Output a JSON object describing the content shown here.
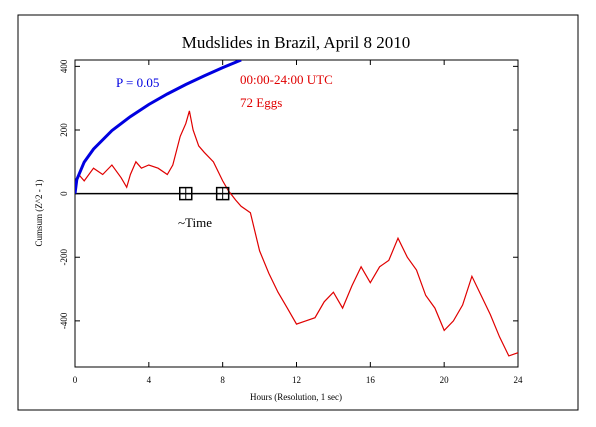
{
  "chart_data": {
    "type": "line",
    "title": "Mudslides in Brazil, April 8 2010",
    "x_label": "Hours (Resolution, 1 sec)",
    "y_label": "Cumsum (Z^2 - 1)",
    "annotations": {
      "p_label": "P = 0.05",
      "time_range": "00:00-24:00 UTC",
      "eggs": "72 Eggs",
      "time_marker": "~Time"
    },
    "event_x": [
      6,
      8
    ],
    "xlim": [
      0,
      24
    ],
    "xticks": [
      0,
      4,
      8,
      12,
      16,
      20,
      24
    ],
    "ylim": [
      -545,
      420
    ],
    "yticks": [
      -400,
      -200,
      0,
      200,
      400
    ],
    "series": [
      {
        "color": "#e00000",
        "x": [
          0,
          0.2,
          0.5,
          1,
          1.5,
          2,
          2.5,
          2.8,
          3,
          3.3,
          3.6,
          4,
          4.5,
          5,
          5.3,
          5.7,
          6,
          6.2,
          6.4,
          6.7,
          7,
          7.5,
          8,
          8.3,
          8.7,
          9,
          9.5,
          10,
          10.5,
          11,
          11.5,
          12,
          12.5,
          13,
          13.5,
          14,
          14.5,
          15,
          15.5,
          16,
          16.5,
          17,
          17.5,
          18,
          18.5,
          19,
          19.5,
          20,
          20.5,
          21,
          21.5,
          22,
          22.5,
          23,
          23.5,
          24
        ],
        "values": [
          30,
          60,
          40,
          80,
          60,
          90,
          50,
          20,
          60,
          100,
          80,
          90,
          80,
          60,
          90,
          180,
          220,
          260,
          200,
          150,
          130,
          100,
          40,
          10,
          -20,
          -40,
          -60,
          -180,
          -250,
          -310,
          -360,
          -410,
          -400,
          -390,
          -340,
          -310,
          -360,
          -290,
          -230,
          -280,
          -230,
          -210,
          -140,
          -200,
          -240,
          -320,
          -360,
          -430,
          -400,
          -350,
          -260,
          -320,
          -380,
          -450,
          -510,
          -500
        ]
      },
      {
        "name": "P = 0.05",
        "color": "#0000e0",
        "x": [
          0,
          0.1,
          0.5,
          1,
          2,
          3,
          4,
          5,
          6,
          7,
          8,
          9
        ],
        "values": [
          0,
          44,
          99,
          140,
          198,
          242,
          280,
          313,
          343,
          370,
          396,
          420
        ]
      }
    ]
  }
}
